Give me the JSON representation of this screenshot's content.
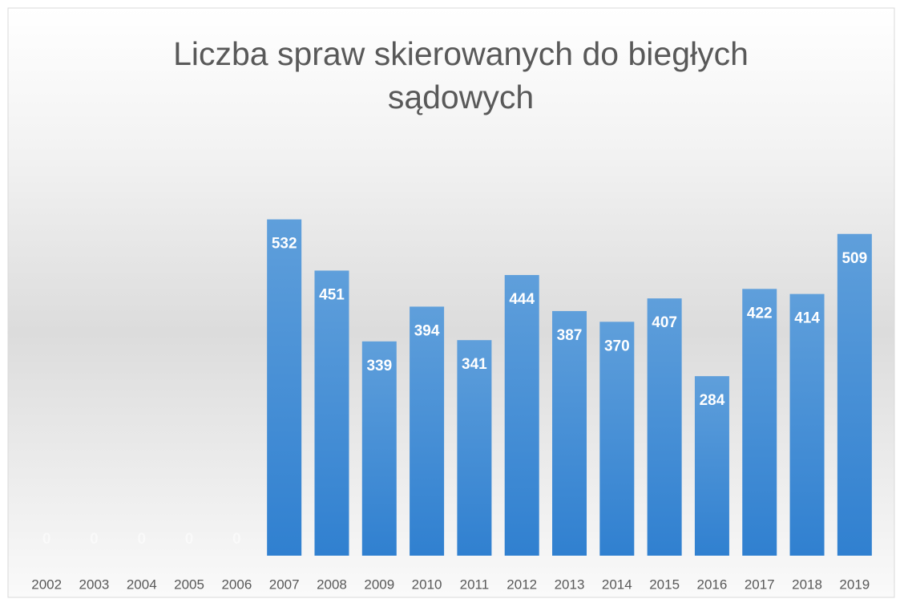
{
  "chart_data": {
    "type": "bar",
    "title": "Liczba spraw skierowanych do biegłych sądowych",
    "categories": [
      "2002",
      "2003",
      "2004",
      "2005",
      "2006",
      "2007",
      "2008",
      "2009",
      "2010",
      "2011",
      "2012",
      "2013",
      "2014",
      "2015",
      "2016",
      "2017",
      "2018",
      "2019"
    ],
    "values": [
      0,
      0,
      0,
      0,
      0,
      532,
      451,
      339,
      394,
      341,
      444,
      387,
      370,
      407,
      284,
      422,
      414,
      509
    ],
    "color": "#5b9bd5",
    "ylim": [
      0,
      600
    ]
  }
}
